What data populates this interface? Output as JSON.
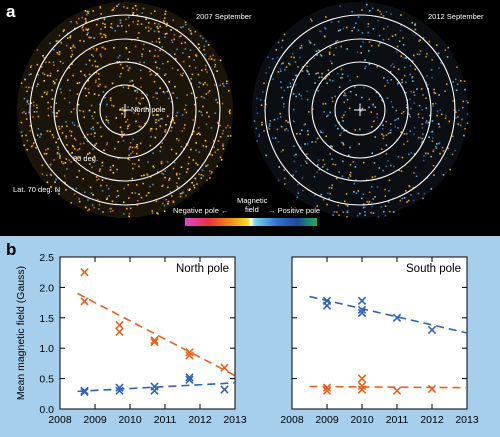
{
  "panel_a": {
    "letter": "a",
    "left_title": "2007 September",
    "right_title": "2012 September",
    "north_pole_label": "North pole",
    "deg80_label": "80 deg.",
    "lat70_label": "Lat. 70 deg. N",
    "legend": {
      "negative": "Negative pole ←",
      "center_line1": "Magnetic",
      "center_line2": "field",
      "positive": "→ Positive pole"
    },
    "colors": {
      "negative_field": "#f2a51f",
      "positive_field": "#3f8fd0"
    }
  },
  "panel_b": {
    "letter": "b"
  },
  "chart_data": [
    {
      "type": "scatter",
      "title": "North pole",
      "ylabel": "Mean magnetic field (Gauss)",
      "xlim": [
        2008,
        2013
      ],
      "ylim": [
        0,
        2.5
      ],
      "x_ticks": [
        "2008",
        "2009",
        "2010",
        "2011",
        "2012",
        "2013"
      ],
      "y_ticks": [
        "0.0",
        "0.5",
        "1.0",
        "1.5",
        "2.0",
        "2.5"
      ],
      "series": [
        {
          "color": "#e8621f",
          "points": [
            [
              2008.7,
              2.25
            ],
            [
              2008.7,
              1.77
            ],
            [
              2009.7,
              1.38
            ],
            [
              2009.7,
              1.27
            ],
            [
              2010.7,
              1.13
            ],
            [
              2010.7,
              1.1
            ],
            [
              2011.7,
              0.93
            ],
            [
              2011.7,
              0.88
            ],
            [
              2012.7,
              0.68
            ]
          ],
          "trend": [
            [
              2008.5,
              1.9
            ],
            [
              2013.0,
              0.55
            ]
          ]
        },
        {
          "color": "#2f62b8",
          "points": [
            [
              2008.7,
              0.3
            ],
            [
              2008.7,
              0.28
            ],
            [
              2009.7,
              0.35
            ],
            [
              2009.7,
              0.3
            ],
            [
              2010.7,
              0.37
            ],
            [
              2010.7,
              0.3
            ],
            [
              2011.7,
              0.52
            ],
            [
              2011.7,
              0.48
            ],
            [
              2012.7,
              0.32
            ]
          ],
          "trend": [
            [
              2008.5,
              0.29
            ],
            [
              2013.0,
              0.43
            ]
          ]
        }
      ]
    },
    {
      "type": "scatter",
      "title": "South pole",
      "xlim": [
        2008,
        2013
      ],
      "ylim": [
        0,
        2.5
      ],
      "x_ticks": [
        "2008",
        "2009",
        "2010",
        "2011",
        "2012",
        "2013"
      ],
      "y_ticks": [],
      "series": [
        {
          "color": "#2f62b8",
          "points": [
            [
              2009.0,
              1.78
            ],
            [
              2009.0,
              1.7
            ],
            [
              2010.0,
              1.78
            ],
            [
              2010.0,
              1.63
            ],
            [
              2010.0,
              1.58
            ],
            [
              2011.0,
              1.5
            ],
            [
              2012.0,
              1.3
            ]
          ],
          "trend": [
            [
              2008.5,
              1.85
            ],
            [
              2013.0,
              1.25
            ]
          ]
        },
        {
          "color": "#e8621f",
          "points": [
            [
              2009.0,
              0.35
            ],
            [
              2009.0,
              0.3
            ],
            [
              2010.0,
              0.5
            ],
            [
              2010.0,
              0.38
            ],
            [
              2010.0,
              0.32
            ],
            [
              2011.0,
              0.3
            ],
            [
              2012.0,
              0.33
            ]
          ],
          "trend": [
            [
              2008.5,
              0.37
            ],
            [
              2013.0,
              0.35
            ]
          ]
        }
      ]
    }
  ]
}
